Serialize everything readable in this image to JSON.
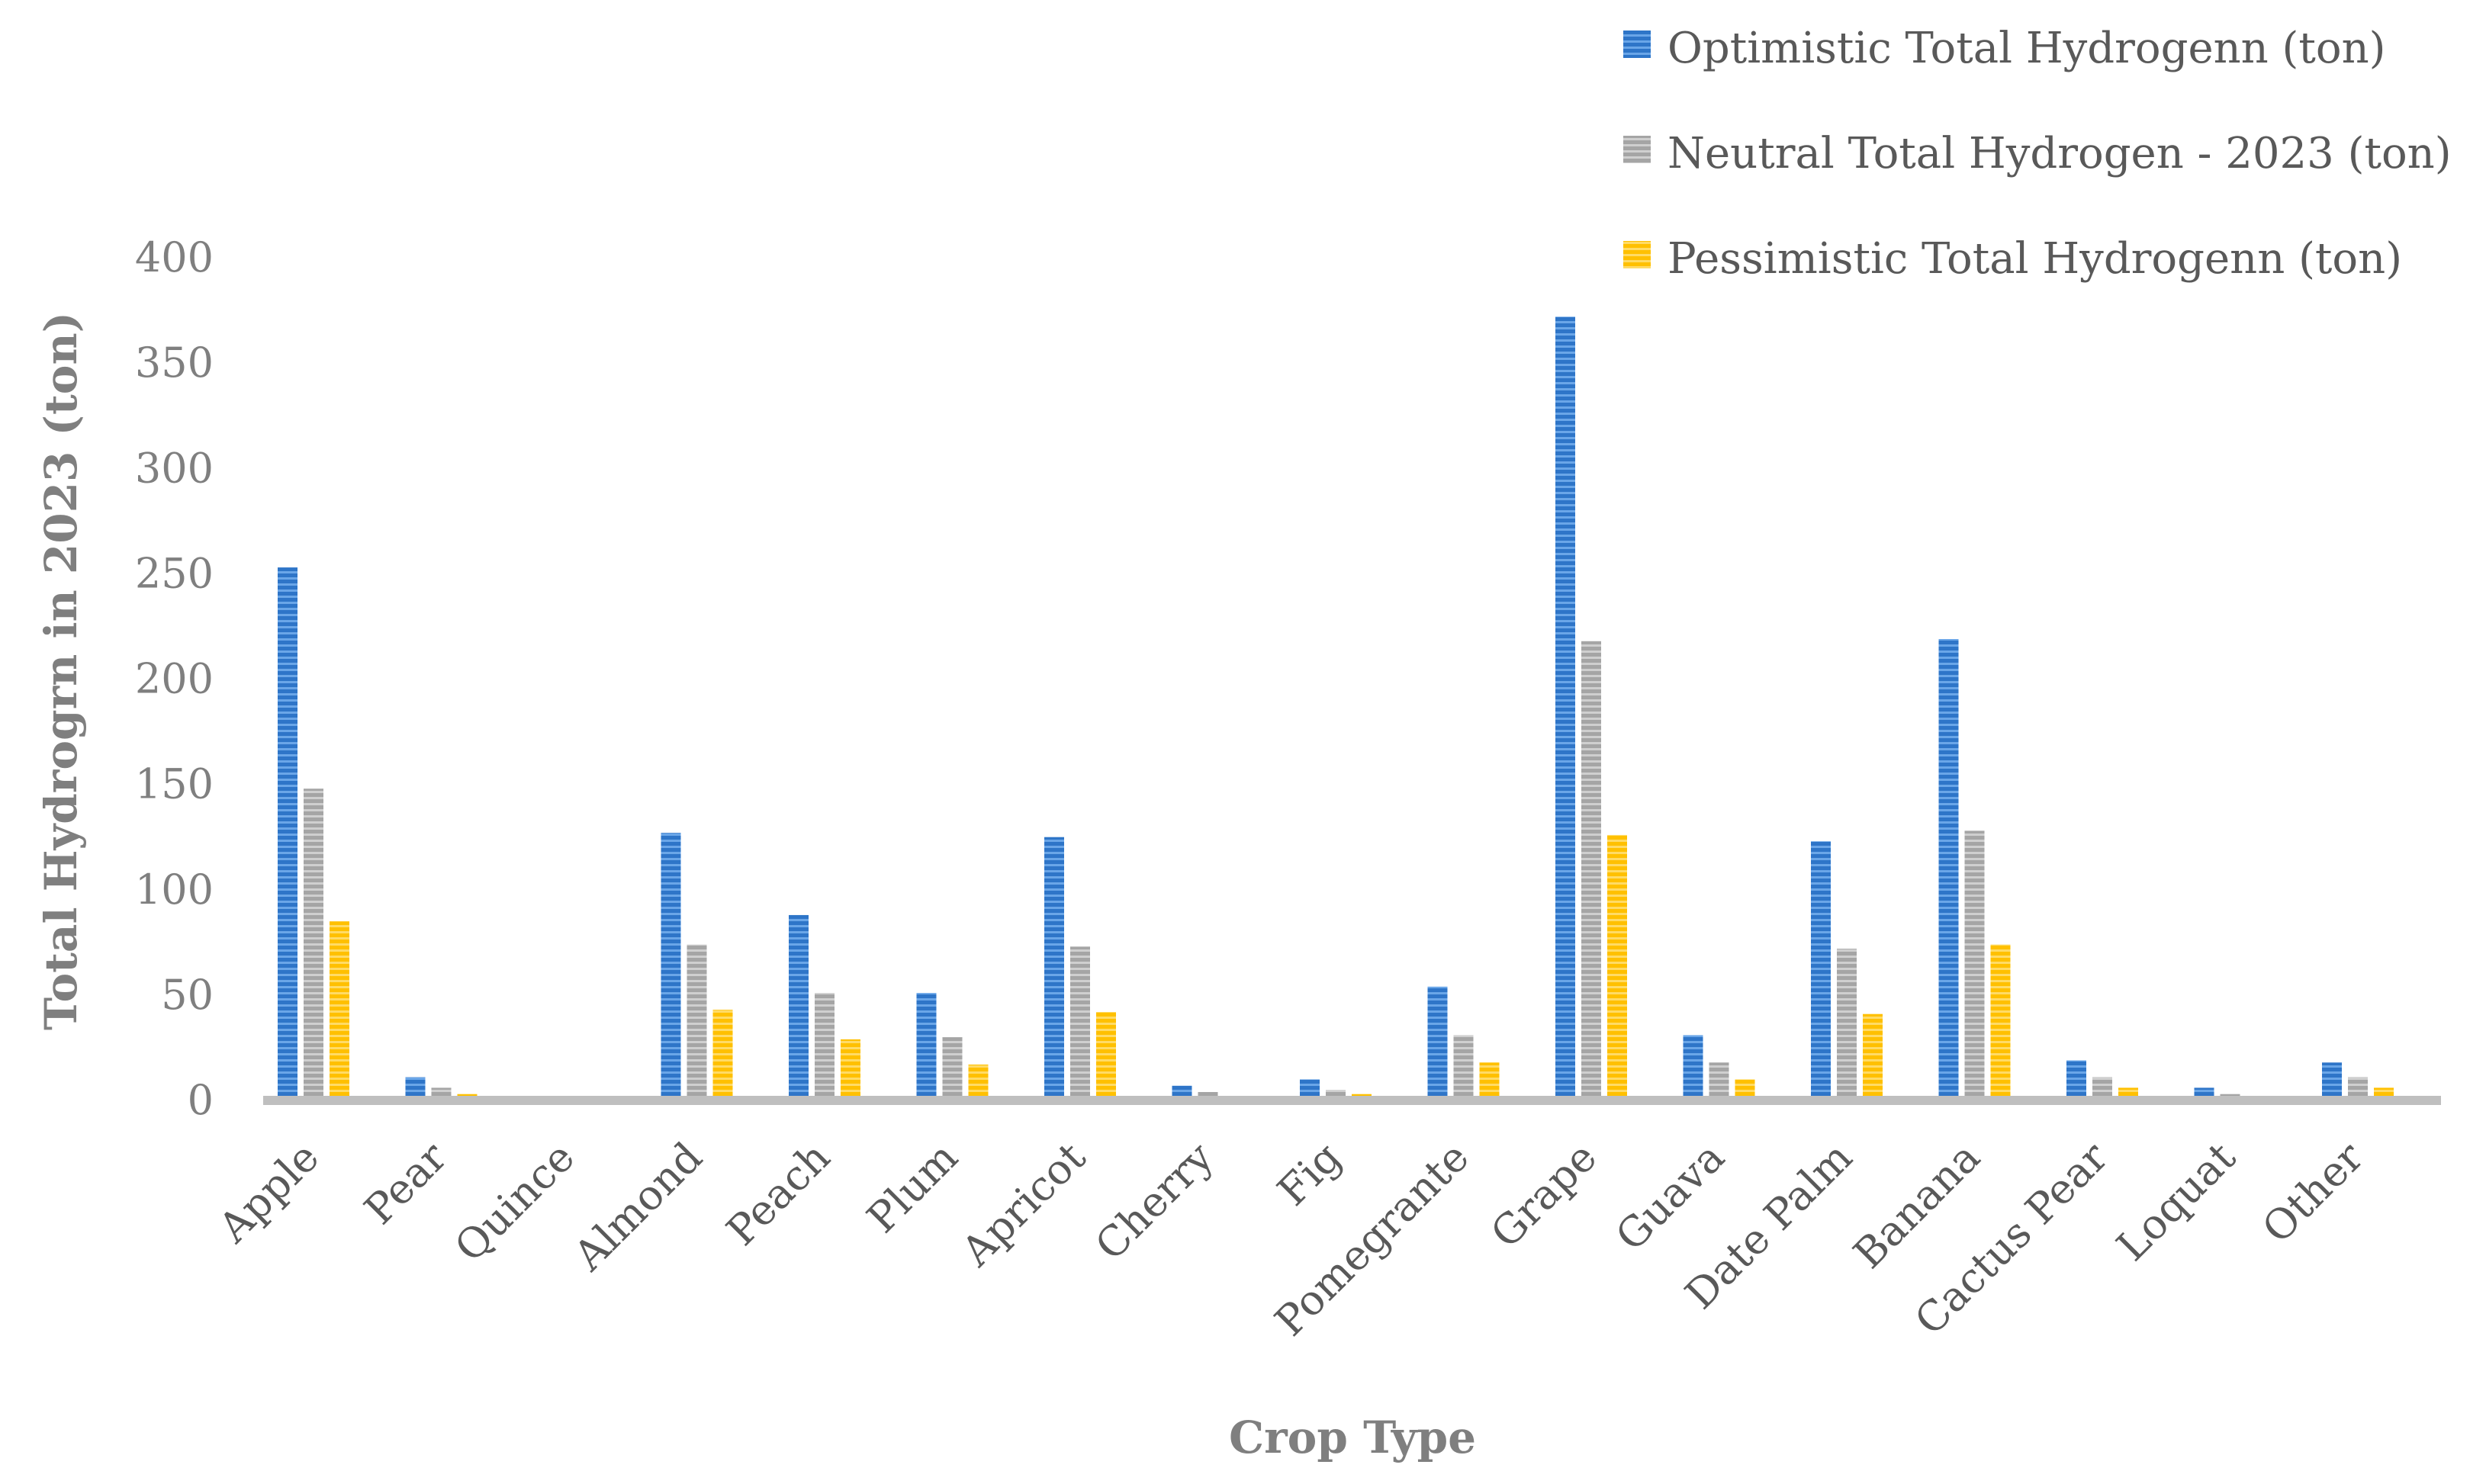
{
  "chart_data": {
    "type": "bar",
    "xlabel": "Crop Type",
    "ylabel": "Total Hydrogrn in 2023 (ton)",
    "ylim": [
      0,
      400
    ],
    "yticks": [
      0,
      50,
      100,
      150,
      200,
      250,
      300,
      350,
      400
    ],
    "grid": false,
    "legend_position": "top-right",
    "categories": [
      "Apple",
      "Pear",
      "Quince",
      "Almond",
      "Peach",
      "Plum",
      "Apricot",
      "Cherry",
      "Fig",
      "Pomegrante",
      "Grape",
      "Guava",
      "Date Palm",
      "Banana",
      "Cactus Pear",
      "Loquat",
      "Other"
    ],
    "series": [
      {
        "name": "Optimistic Total Hydrogenn (ton)",
        "color": "#2e75c8",
        "values": [
          253,
          11,
          0,
          127,
          88,
          51,
          125,
          7,
          10,
          54,
          372,
          31,
          123,
          219,
          19,
          6,
          18
        ]
      },
      {
        "name": "Neutral Total Hydrogen - 2023 (ton)",
        "color": "#a5a5a5",
        "values": [
          148,
          6,
          0,
          74,
          51,
          30,
          73,
          4,
          5,
          31,
          218,
          18,
          72,
          128,
          11,
          3,
          11
        ]
      },
      {
        "name": "Pessimistic Total Hydrogenn (ton)",
        "color": "#ffc000",
        "values": [
          85,
          3,
          0,
          43,
          29,
          17,
          42,
          2,
          3,
          18,
          126,
          10,
          41,
          74,
          6,
          1,
          6
        ]
      }
    ]
  }
}
